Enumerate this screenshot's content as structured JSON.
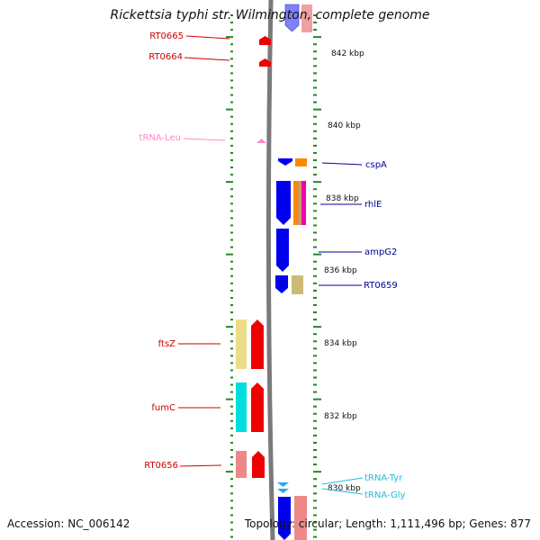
{
  "title": "Rickettsia typhi str. Wilmington, complete genome",
  "footer": {
    "accession": "Accession: NC_006142",
    "summary": "Topology: circular; Length: 1,111,496 bp; Genes: 877"
  },
  "scale": {
    "unit": "kbp",
    "labels": [
      "842 kbp",
      "840 kbp",
      "838 kbp",
      "836 kbp",
      "834 kbp",
      "832 kbp",
      "830 kbp"
    ]
  },
  "colors": {
    "forward_cds": "#ff0000",
    "reverse_cds": "#0000ff",
    "forward_label": "#cc0000",
    "reverse_label": "#000099",
    "trna_leu": "#ff88cc",
    "trna_other": "#22bbdd",
    "backbone": "#888888",
    "tick": "#228822"
  },
  "genes": [
    {
      "label": "RT0665",
      "strand": "forward"
    },
    {
      "label": "RT0664",
      "strand": "forward"
    },
    {
      "label": "tRNA-Leu",
      "strand": "forward"
    },
    {
      "label": "cspA",
      "strand": "reverse"
    },
    {
      "label": "rhlE",
      "strand": "reverse"
    },
    {
      "label": "ampG2",
      "strand": "reverse"
    },
    {
      "label": "RT0659",
      "strand": "reverse"
    },
    {
      "label": "ftsZ",
      "strand": "forward"
    },
    {
      "label": "fumC",
      "strand": "forward"
    },
    {
      "label": "RT0656",
      "strand": "forward"
    },
    {
      "label": "tRNA-Tyr",
      "strand": "reverse"
    },
    {
      "label": "tRNA-Gly",
      "strand": "reverse"
    }
  ]
}
